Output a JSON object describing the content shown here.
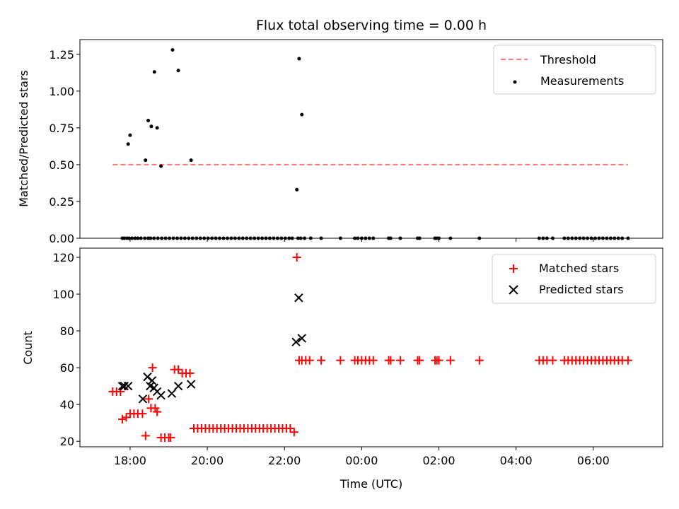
{
  "chart_data": {
    "title": "Flux total observing time = 0.00 h",
    "xlabel": "Time (UTC)",
    "x_unit": "hours since 00:00 UTC",
    "x_range": [
      -7.3,
      7.8
    ],
    "x_ticks": [
      {
        "value": -6,
        "label": "18:00"
      },
      {
        "value": -4,
        "label": "20:00"
      },
      {
        "value": -2,
        "label": "22:00"
      },
      {
        "value": 0,
        "label": "00:00"
      },
      {
        "value": 2,
        "label": "02:00"
      },
      {
        "value": 4,
        "label": "04:00"
      },
      {
        "value": 6,
        "label": "06:00"
      }
    ],
    "panels": [
      {
        "type": "scatter",
        "ylabel": "Matched/Predicted stars",
        "ylim": [
          0,
          1.35
        ],
        "yticks": [
          0,
          0.25,
          0.5,
          0.75,
          1.0,
          1.25
        ],
        "ytick_labels": [
          "0.00",
          "0.25",
          "0.50",
          "0.75",
          "1.00",
          "1.25"
        ],
        "legend": {
          "position": "top-right",
          "entries": [
            "Threshold",
            "Measurements"
          ]
        },
        "threshold": {
          "name": "Threshold",
          "y": 0.5,
          "x": [
            -6.45,
            6.9
          ],
          "color": "#ff7b7b"
        },
        "series": [
          {
            "name": "Measurements",
            "color": "#000000",
            "x": [
              -6.2,
              -6.15,
              -6.08,
              -6.02,
              -5.95,
              -5.87,
              -5.8,
              -5.72,
              -5.62,
              -5.53,
              -5.47,
              -5.38,
              -5.28,
              -5.18,
              -5.08,
              -4.98,
              -4.88,
              -4.78,
              -4.68,
              -4.58,
              -4.48,
              -4.38,
              -4.28,
              -4.18,
              -4.08,
              -3.98,
              -3.88,
              -3.78,
              -3.68,
              -3.58,
              -3.48,
              -3.38,
              -3.28,
              -3.18,
              -3.08,
              -2.98,
              -2.88,
              -2.78,
              -2.68,
              -2.58,
              -2.48,
              -2.38,
              -2.28,
              -2.18,
              -2.08,
              -1.98,
              -1.88,
              -1.8,
              -1.65,
              -1.58,
              -1.48,
              -1.32,
              -1.05,
              -0.55,
              -0.18,
              -0.1,
              0.0,
              0.1,
              0.2,
              0.3,
              0.7,
              0.75,
              1.0,
              1.45,
              1.5,
              1.9,
              1.95,
              2.0,
              2.3,
              3.05,
              4.6,
              4.7,
              4.8,
              4.95,
              5.25,
              5.35,
              5.45,
              5.55,
              5.65,
              5.75,
              5.85,
              5.95,
              6.05,
              6.15,
              6.25,
              6.35,
              6.45,
              6.55,
              6.65,
              6.75,
              6.9,
              -6.05,
              -6.0,
              -5.6,
              -5.53,
              -5.45,
              -5.37,
              -5.3,
              -5.2,
              -4.9,
              -4.75,
              -4.42,
              -1.68,
              -1.62,
              -1.55
            ],
            "y": [
              0,
              0,
              0,
              0,
              0,
              0,
              0,
              0,
              0,
              0,
              0,
              0,
              0,
              0,
              0,
              0,
              0,
              0,
              0,
              0,
              0,
              0,
              0,
              0,
              0,
              0,
              0,
              0,
              0,
              0,
              0,
              0,
              0,
              0,
              0,
              0,
              0,
              0,
              0,
              0,
              0,
              0,
              0,
              0,
              0,
              0,
              0,
              0,
              0,
              0,
              0,
              0,
              0,
              0,
              0,
              0,
              0,
              0,
              0,
              0,
              0,
              0,
              0,
              0,
              0,
              0,
              0,
              0,
              0,
              0,
              0,
              0,
              0,
              0,
              0,
              0,
              0,
              0,
              0,
              0,
              0,
              0,
              0,
              0,
              0,
              0,
              0,
              0,
              0,
              0,
              0,
              0.64,
              0.7,
              0.53,
              0.8,
              0.76,
              1.13,
              0.75,
              0.49,
              1.28,
              1.14,
              0.53,
              0.33,
              1.22,
              0.84
            ]
          }
        ]
      },
      {
        "type": "scatter",
        "ylabel": "Count",
        "ylim": [
          17,
          125
        ],
        "yticks": [
          20,
          40,
          60,
          80,
          100,
          120
        ],
        "ytick_labels": [
          "20",
          "40",
          "60",
          "80",
          "100",
          "120"
        ],
        "legend": {
          "position": "top-right",
          "entries": [
            "Matched stars",
            "Predicted stars"
          ]
        },
        "series": [
          {
            "name": "Matched stars",
            "marker": "+",
            "color": "#ff0000",
            "x": [
              -6.45,
              -6.35,
              -6.25,
              -6.2,
              -6.1,
              -6.0,
              -5.9,
              -5.8,
              -5.68,
              -5.6,
              -5.52,
              -5.46,
              -5.42,
              -5.35,
              -5.3,
              -5.2,
              -5.1,
              -5.0,
              -4.95,
              -4.85,
              -4.75,
              -4.65,
              -4.55,
              -4.45,
              -4.35,
              -4.25,
              -4.15,
              -4.05,
              -3.95,
              -3.85,
              -3.75,
              -3.65,
              -3.55,
              -3.45,
              -3.35,
              -3.25,
              -3.15,
              -3.05,
              -2.95,
              -2.85,
              -2.75,
              -2.65,
              -2.55,
              -2.45,
              -2.35,
              -2.25,
              -2.15,
              -2.05,
              -1.95,
              -1.85,
              -1.75,
              -1.68,
              -1.62,
              -1.55,
              -1.45,
              -1.35,
              -1.05,
              -0.55,
              -0.18,
              -0.1,
              0.0,
              0.1,
              0.2,
              0.3,
              0.7,
              0.75,
              1.0,
              1.45,
              1.5,
              1.9,
              1.95,
              2.0,
              2.3,
              3.05,
              4.6,
              4.7,
              4.8,
              4.95,
              5.25,
              5.35,
              5.45,
              5.55,
              5.65,
              5.75,
              5.85,
              5.95,
              6.05,
              6.15,
              6.25,
              6.35,
              6.45,
              6.55,
              6.65,
              6.75,
              6.9
            ],
            "y": [
              47,
              47,
              47,
              32,
              33,
              35,
              35,
              35,
              35,
              23,
              43,
              38,
              60,
              38,
              36,
              22,
              22,
              22,
              22,
              59,
              59,
              57,
              57,
              57,
              27,
              27,
              27,
              27,
              27,
              27,
              27,
              27,
              27,
              27,
              27,
              27,
              27,
              27,
              27,
              27,
              27,
              27,
              27,
              27,
              27,
              27,
              27,
              27,
              27,
              27,
              25,
              120,
              64,
              64,
              64,
              64,
              64,
              64,
              64,
              64,
              64,
              64,
              64,
              64,
              64,
              64,
              64,
              64,
              64,
              64,
              64,
              64,
              64,
              64,
              64,
              64,
              64,
              64,
              64,
              64,
              64,
              64,
              64,
              64,
              64,
              64,
              64,
              64,
              64,
              64,
              64,
              64,
              64,
              64,
              64
            ]
          },
          {
            "name": "Predicted stars",
            "marker": "x",
            "color": "#000000",
            "x": [
              -6.2,
              -6.15,
              -6.05,
              -5.67,
              -5.55,
              -5.48,
              -5.43,
              -5.38,
              -5.3,
              -5.2,
              -4.92,
              -4.75,
              -4.42,
              -1.7,
              -1.63,
              -1.55
            ],
            "y": [
              50,
              50,
              50,
              43,
              55,
              50,
              53,
              49,
              47,
              45,
              46,
              50,
              51,
              74,
              98,
              76
            ]
          }
        ]
      }
    ]
  }
}
